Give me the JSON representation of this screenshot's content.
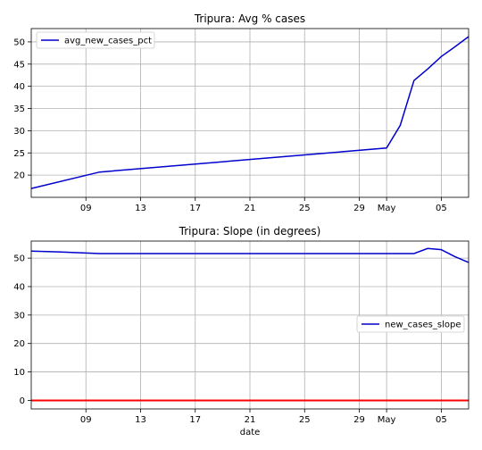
{
  "chart_data": [
    {
      "type": "line",
      "title": "Tripura: Avg % cases",
      "xlabel": "",
      "ylabel": "",
      "x_tick_labels": [
        "09",
        "13",
        "17",
        "21",
        "25",
        "29",
        "May",
        "05"
      ],
      "x_tick_days": [
        9,
        13,
        17,
        21,
        25,
        29,
        31,
        35
      ],
      "xlim_days": [
        5,
        37
      ],
      "y_ticks": [
        20,
        25,
        30,
        35,
        40,
        45,
        50
      ],
      "ylim": [
        15,
        53
      ],
      "grid": true,
      "legend_position": "upper left",
      "series": [
        {
          "name": "avg_new_cases_pct",
          "color": "#0000cc",
          "x_days": [
            5,
            10,
            31,
            32,
            33,
            34,
            35,
            36,
            37
          ],
          "values": [
            17,
            20.7,
            26.1,
            31.2,
            41.3,
            43.9,
            46.7,
            48.9,
            51.2
          ]
        }
      ]
    },
    {
      "type": "line",
      "title": "Tripura: Slope (in degrees)",
      "xlabel": "date",
      "ylabel": "",
      "x_tick_labels": [
        "09",
        "13",
        "17",
        "21",
        "25",
        "29",
        "May",
        "05"
      ],
      "x_tick_days": [
        9,
        13,
        17,
        21,
        25,
        29,
        31,
        35
      ],
      "xlim_days": [
        5,
        37
      ],
      "y_ticks": [
        0,
        10,
        20,
        30,
        40,
        50
      ],
      "ylim": [
        -3,
        56
      ],
      "grid": true,
      "legend_position": "center right",
      "series": [
        {
          "name": "new_cases_slope",
          "color": "#0000cc",
          "x_days": [
            5,
            7,
            10,
            33,
            34,
            35,
            36,
            37
          ],
          "values": [
            52.5,
            52.2,
            51.6,
            51.6,
            53.4,
            53.0,
            50.5,
            48.5
          ]
        }
      ],
      "reference_lines": [
        {
          "y": 0,
          "color": "#ff0000"
        }
      ]
    }
  ]
}
